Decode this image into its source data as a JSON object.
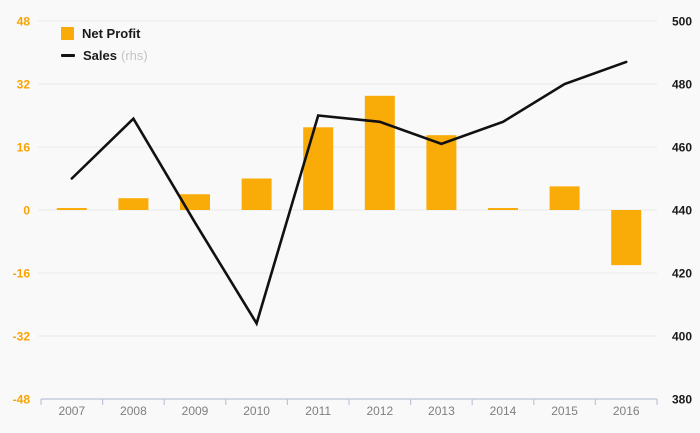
{
  "legend": {
    "net_profit_label": "Net Profit",
    "sales_label": "Sales",
    "sales_suffix": "(rhs)"
  },
  "colors": {
    "bar": "#F9AB07",
    "line": "#111111",
    "left_axis_labels": "#F9A300",
    "right_axis_labels": "#1a1a1a",
    "gridline": "#e9e9e9",
    "baseline": "#bdc5db",
    "year_labels": "#7f7f7f",
    "background": "#f9f9f9",
    "legend_text": "#1a1a1a",
    "legend_rhs": "#c4c4c4"
  },
  "chart_data": {
    "type": "bar+line combo",
    "title": "",
    "categories": [
      "2007",
      "2008",
      "2009",
      "2010",
      "2011",
      "2012",
      "2013",
      "2014",
      "2015",
      "2016"
    ],
    "series": [
      {
        "name": "Net Profit",
        "type": "bar",
        "axis": "left",
        "values": [
          0.5,
          3,
          4,
          8,
          21,
          29,
          19,
          0.5,
          6,
          -14
        ]
      },
      {
        "name": "Sales (rhs)",
        "type": "line",
        "axis": "right",
        "values": [
          450,
          469,
          436,
          404,
          470,
          468,
          461,
          468,
          480,
          487
        ]
      }
    ],
    "left_axis": {
      "ticks": [
        48,
        32,
        16,
        0,
        -16,
        -32,
        -48
      ],
      "min": -48,
      "max": 48
    },
    "right_axis": {
      "ticks": [
        500,
        480,
        460,
        440,
        420,
        400,
        380
      ],
      "min": 380,
      "max": 500
    },
    "grid": true,
    "legend_position": "top-left"
  }
}
